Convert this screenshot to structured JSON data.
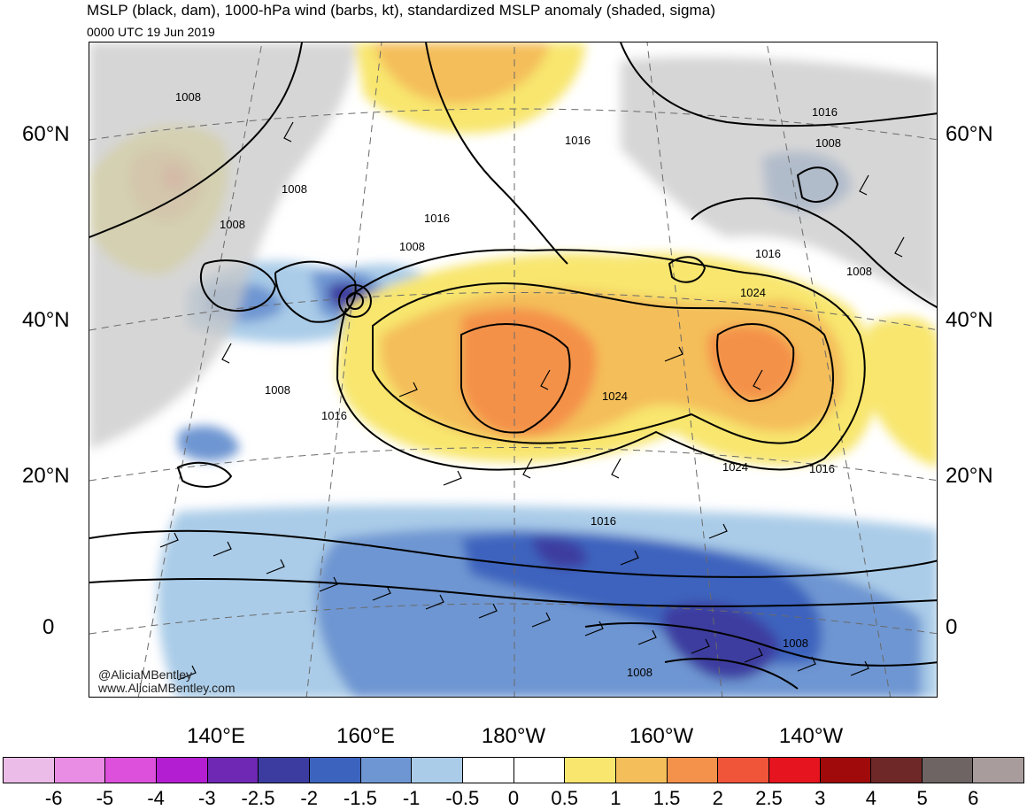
{
  "header": {
    "title": "MSLP (black, dam), 1000-hPa wind (barbs, kt), standardized MSLP anomaly (shaded, sigma)",
    "timestamp": "0000 UTC 19 Jun 2019"
  },
  "map": {
    "lat_labels_left": [
      "60°N",
      "40°N",
      "20°N",
      "0"
    ],
    "lat_labels_right": [
      "60°N",
      "40°N",
      "20°N",
      "0"
    ],
    "lon_labels": [
      "140°E",
      "160°E",
      "180°W",
      "160°W",
      "140°W"
    ],
    "contour_labels": [
      "1008",
      "1008",
      "1008",
      "1008",
      "1016",
      "1008",
      "1016",
      "1016",
      "1008",
      "1016",
      "1024",
      "1008",
      "1024",
      "1016",
      "1024",
      "1016",
      "1016",
      "1008",
      "1008"
    ],
    "credit_handle": "@AliciaMBentley",
    "credit_url": "www.AliciaMBentley.com",
    "colors": {
      "land": "#c8c8c8",
      "contour": "#000000"
    }
  },
  "colorbar": {
    "ticks": [
      "-6",
      "-5",
      "-4",
      "-3",
      "-2.5",
      "-2",
      "-1.5",
      "-1",
      "-0.5",
      "0",
      "0.5",
      "1",
      "1.5",
      "2",
      "2.5",
      "3",
      "4",
      "5",
      "6"
    ],
    "colors": [
      "#ecbce8",
      "#e88ce4",
      "#dc50dc",
      "#b41ed2",
      "#6e28b4",
      "#3c3ca0",
      "#3c64be",
      "#6e96d2",
      "#aacce8",
      "#ffffff",
      "#ffffff",
      "#f8e66e",
      "#f4be5a",
      "#f4914a",
      "#f0553a",
      "#e6141e",
      "#a00a0a",
      "#6e2828",
      "#6e6464",
      "#a89c9c"
    ]
  }
}
